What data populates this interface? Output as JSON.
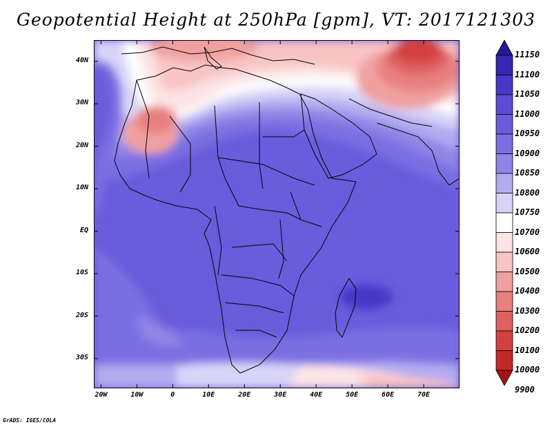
{
  "title": "Geopotential Height at 250hPa [gpm], VT: 2017121303",
  "credit": "GrADS: IGES/COLA",
  "map": {
    "region": "Africa",
    "lon_range": [
      -22,
      80
    ],
    "lat_range": [
      -37,
      45
    ],
    "lat_labels": [
      {
        "lat": 40,
        "text": "40N"
      },
      {
        "lat": 30,
        "text": "30N"
      },
      {
        "lat": 20,
        "text": "20N"
      },
      {
        "lat": 10,
        "text": "10N"
      },
      {
        "lat": 0,
        "text": "EQ"
      },
      {
        "lat": -10,
        "text": "10S"
      },
      {
        "lat": -20,
        "text": "20S"
      },
      {
        "lat": -30,
        "text": "30S"
      }
    ],
    "lon_labels": [
      {
        "lon": -20,
        "text": "20W"
      },
      {
        "lon": -10,
        "text": "10W"
      },
      {
        "lon": 0,
        "text": "0"
      },
      {
        "lon": 10,
        "text": "10E"
      },
      {
        "lon": 20,
        "text": "20E"
      },
      {
        "lon": 30,
        "text": "30E"
      },
      {
        "lon": 40,
        "text": "40E"
      },
      {
        "lon": 50,
        "text": "50E"
      },
      {
        "lon": 60,
        "text": "60E"
      },
      {
        "lon": 70,
        "text": "70E"
      }
    ]
  },
  "colorbar": {
    "levels": [
      "11150",
      "11100",
      "11050",
      "11000",
      "10950",
      "10900",
      "10850",
      "10800",
      "10750",
      "10700",
      "10600",
      "10500",
      "10400",
      "10300",
      "10200",
      "10100",
      "10000",
      "9900"
    ],
    "colors": [
      "#241a96",
      "#3228b4",
      "#4638c8",
      "#5a4cd6",
      "#6a5cdc",
      "#7a6ee2",
      "#9084e6",
      "#b4aaf0",
      "#d8d4f8",
      "#ffffff",
      "#fce4e4",
      "#f8c4c4",
      "#f0a0a0",
      "#e88080",
      "#de6060",
      "#d44040",
      "#c42828",
      "#a81414"
    ]
  }
}
